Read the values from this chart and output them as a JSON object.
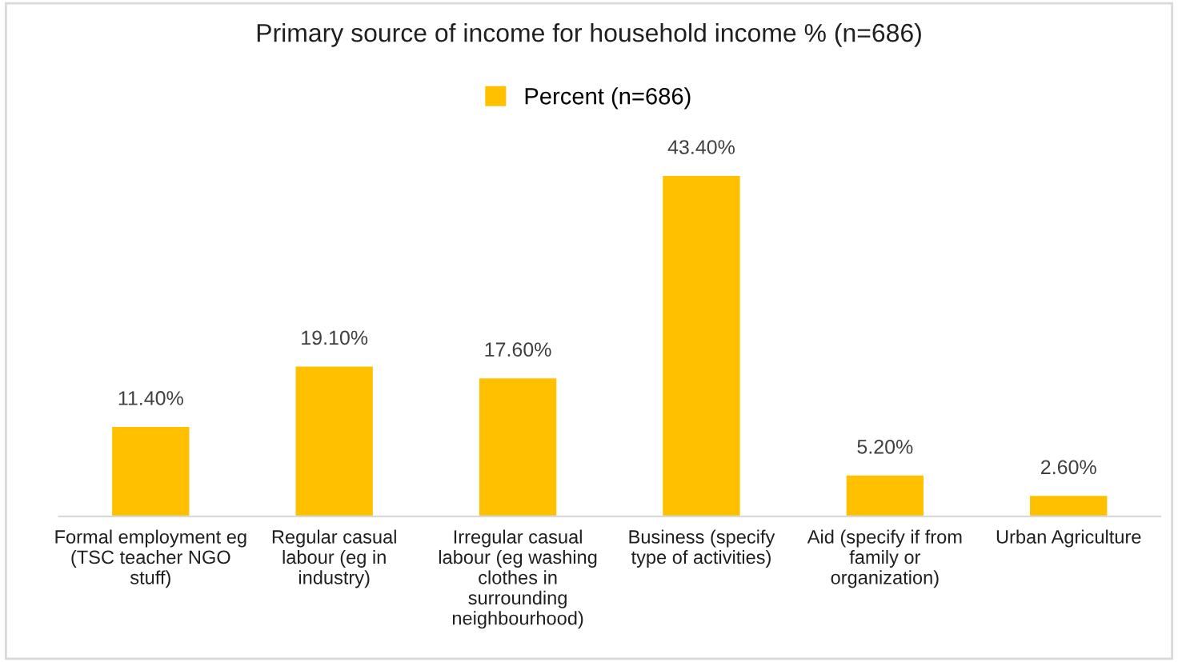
{
  "chart_data": {
    "type": "bar",
    "title": "Primary source of income for household income % (n=686)",
    "categories": [
      "Formal employment eg (TSC teacher NGO stuff)",
      "Regular casual labour (eg in industry)",
      "Irregular casual labour (eg washing clothes in surrounding neighbourhood)",
      "Business (specify type of activities)",
      "Aid (specify if from family or organization)",
      "Urban Agriculture"
    ],
    "series": [
      {
        "name": "Percent (n=686)",
        "color": "#ffc000",
        "values": [
          11.4,
          19.1,
          17.6,
          43.4,
          5.2,
          2.6
        ],
        "value_labels": [
          "11.40%",
          "19.10%",
          "17.60%",
          "43.40%",
          "5.20%",
          "2.60%"
        ]
      }
    ],
    "legend": "top",
    "grid": false
  }
}
